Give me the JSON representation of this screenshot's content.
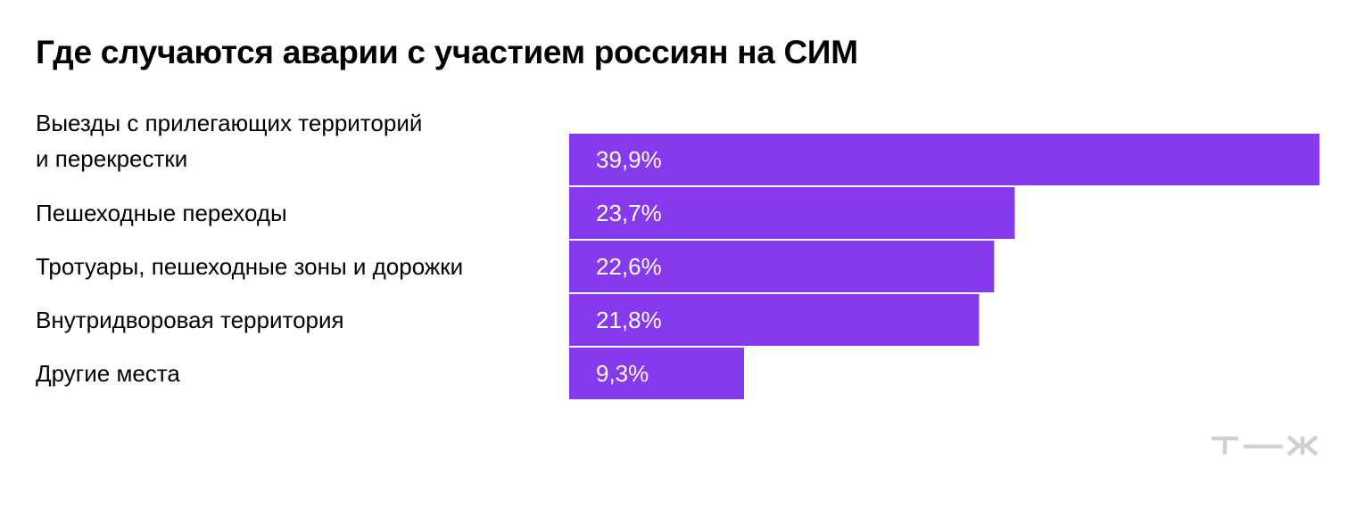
{
  "title": "Где случаются аварии с участием россиян на СИМ",
  "logo": {
    "icon": "tzh-logo-icon",
    "text": "т—ж"
  },
  "colors": {
    "bar": "#8739ED",
    "logo": "#d0d0d0"
  },
  "chart_data": {
    "type": "bar",
    "orientation": "horizontal",
    "title": "Где случаются аварии с участием россиян на СИМ",
    "categories": [
      [
        "Выезды с прилегающих территорий",
        "и перекрестки"
      ],
      [
        "Пешеходные переходы"
      ],
      [
        "Тротуары, пешеходные зоны и дорожки"
      ],
      [
        "Внутридворовая территория"
      ],
      [
        "Другие места"
      ]
    ],
    "values": [
      39.9,
      23.7,
      22.6,
      21.8,
      9.3
    ],
    "value_labels": [
      "39,9%",
      "23,7%",
      "22,6%",
      "21,8%",
      "9,3%"
    ],
    "unit": "%",
    "grid": false,
    "legend": "none"
  }
}
